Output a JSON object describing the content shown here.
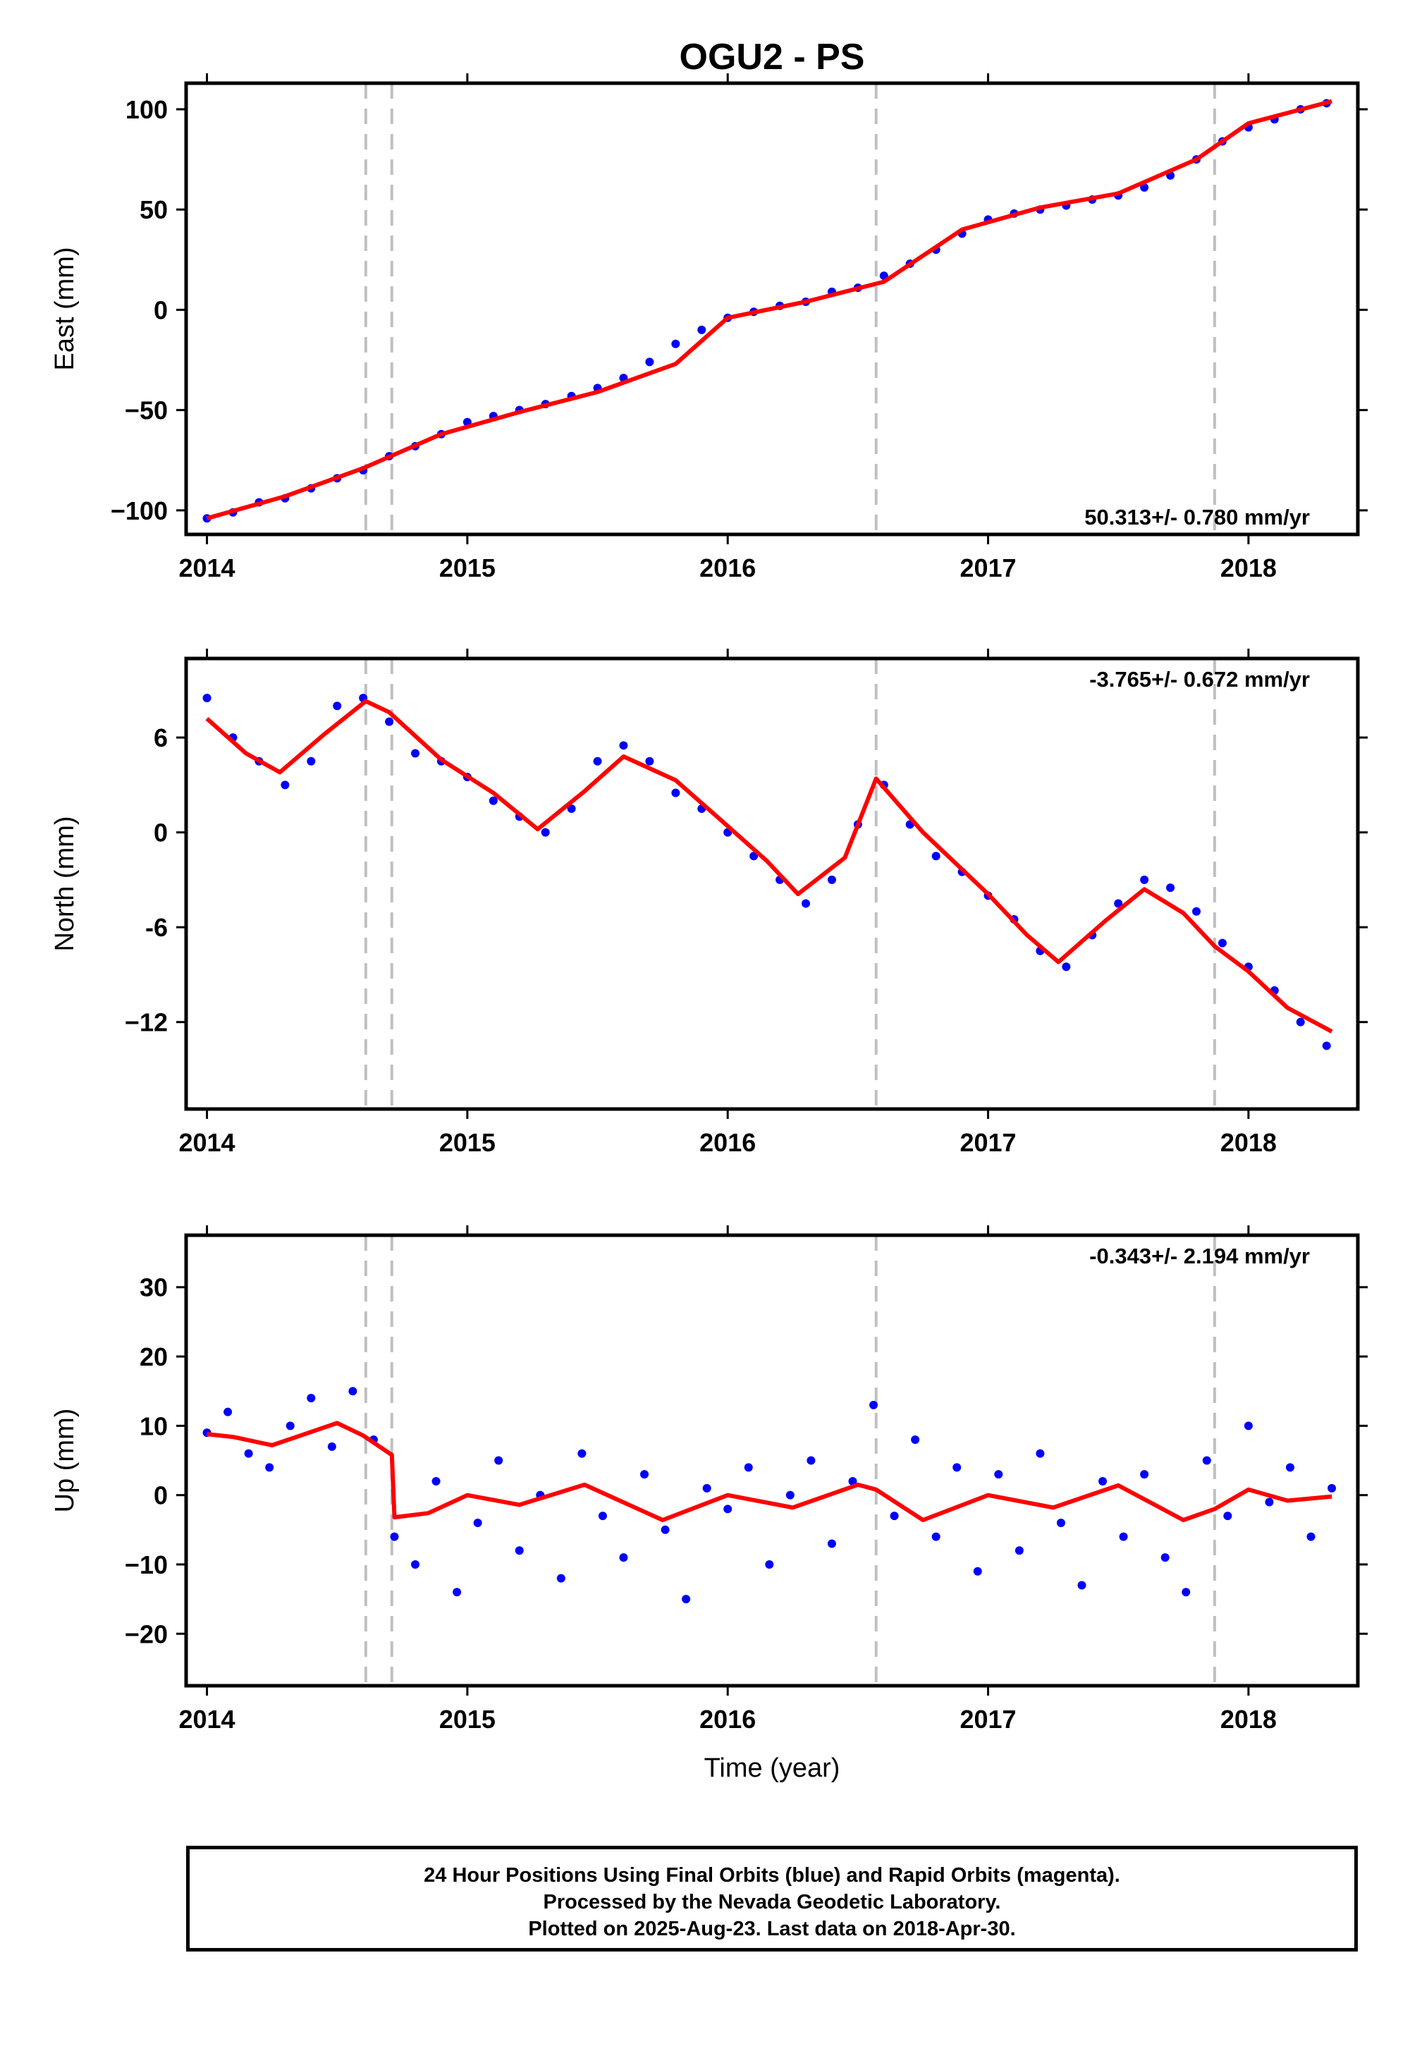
{
  "chart_data": {
    "type": "scatter",
    "title": "OGU2 - PS",
    "xlabel": "Time (year)",
    "xlim": [
      2013.92,
      2018.42
    ],
    "xticks": [
      "2014",
      "2015",
      "2016",
      "2017",
      "2018"
    ],
    "event_lines": [
      2014.61,
      2014.71,
      2016.57,
      2017.87
    ],
    "colors": {
      "points": "#0000ff",
      "fit": "#ff0000",
      "event_lines": "#c0c0c0",
      "frame": "#000000"
    },
    "panels": [
      {
        "ylabel": "East (mm)",
        "ylim": [
          -112,
          113
        ],
        "yticks": [
          "100",
          "50",
          "0",
          "−50",
          "−100"
        ],
        "ytick_values": [
          100,
          50,
          0,
          -50,
          -100
        ],
        "rate_label": "50.313+/- 0.780 mm/yr",
        "fit": {
          "x": [
            2014.0,
            2014.3,
            2014.6,
            2014.9,
            2015.2,
            2015.5,
            2015.8,
            2016.0,
            2016.3,
            2016.6,
            2016.9,
            2017.2,
            2017.5,
            2017.8,
            2018.0,
            2018.32
          ],
          "y": [
            -104,
            -93,
            -79,
            -62,
            -51,
            -41,
            -27,
            -4,
            4,
            14,
            40,
            51,
            58,
            75,
            93,
            104
          ]
        },
        "points": {
          "x": [
            2014.0,
            2014.1,
            2014.2,
            2014.3,
            2014.4,
            2014.5,
            2014.6,
            2014.7,
            2014.8,
            2014.9,
            2015.0,
            2015.1,
            2015.2,
            2015.3,
            2015.4,
            2015.5,
            2015.6,
            2015.7,
            2015.8,
            2015.9,
            2016.0,
            2016.1,
            2016.2,
            2016.3,
            2016.4,
            2016.5,
            2016.6,
            2016.7,
            2016.8,
            2016.9,
            2017.0,
            2017.1,
            2017.2,
            2017.3,
            2017.4,
            2017.5,
            2017.6,
            2017.7,
            2017.8,
            2017.9,
            2018.0,
            2018.1,
            2018.2,
            2018.3
          ],
          "y": [
            -104,
            -101,
            -96,
            -94,
            -89,
            -84,
            -80,
            -73,
            -68,
            -62,
            -56,
            -53,
            -50,
            -47,
            -43,
            -39,
            -34,
            -26,
            -17,
            -10,
            -4,
            -1,
            2,
            4,
            9,
            11,
            17,
            23,
            30,
            38,
            45,
            48,
            50,
            52,
            55,
            57,
            61,
            67,
            75,
            84,
            91,
            95,
            100,
            103
          ]
        }
      },
      {
        "ylabel": "North (mm)",
        "ylim": [
          -17.5,
          11
        ],
        "yticks": [
          "6",
          "0",
          "-6",
          "−12"
        ],
        "ytick_values": [
          6,
          0,
          -6,
          -12
        ],
        "rate_label": "-3.765+/- 0.672 mm/yr",
        "fit": {
          "x": [
            2014.0,
            2014.15,
            2014.28,
            2014.45,
            2014.61,
            2014.7,
            2014.9,
            2015.1,
            2015.27,
            2015.45,
            2015.6,
            2015.8,
            2016.0,
            2016.15,
            2016.27,
            2016.45,
            2016.57,
            2016.75,
            2017.0,
            2017.15,
            2017.27,
            2017.45,
            2017.6,
            2017.75,
            2017.87,
            2018.0,
            2018.15,
            2018.32
          ],
          "y": [
            7.2,
            5.0,
            3.8,
            6.2,
            8.3,
            7.6,
            4.6,
            2.5,
            0.2,
            2.6,
            4.8,
            3.3,
            0.4,
            -1.8,
            -3.9,
            -1.6,
            3.4,
            0.0,
            -3.9,
            -6.5,
            -8.2,
            -5.6,
            -3.6,
            -5.1,
            -7.2,
            -8.8,
            -11.1,
            -12.6
          ]
        },
        "points": {
          "x": [
            2014.0,
            2014.1,
            2014.2,
            2014.3,
            2014.4,
            2014.5,
            2014.6,
            2014.7,
            2014.8,
            2014.9,
            2015.0,
            2015.1,
            2015.2,
            2015.3,
            2015.4,
            2015.5,
            2015.6,
            2015.7,
            2015.8,
            2015.9,
            2016.0,
            2016.1,
            2016.2,
            2016.3,
            2016.4,
            2016.5,
            2016.6,
            2016.7,
            2016.8,
            2016.9,
            2017.0,
            2017.1,
            2017.2,
            2017.3,
            2017.4,
            2017.5,
            2017.6,
            2017.7,
            2017.8,
            2017.9,
            2018.0,
            2018.1,
            2018.2,
            2018.3
          ],
          "y": [
            8.5,
            6.0,
            4.5,
            3.0,
            4.5,
            8.0,
            8.5,
            7.0,
            5.0,
            4.5,
            3.5,
            2.0,
            1.0,
            0.0,
            1.5,
            4.5,
            5.5,
            4.5,
            2.5,
            1.5,
            0.0,
            -1.5,
            -3.0,
            -4.5,
            -3.0,
            0.5,
            3.0,
            0.5,
            -1.5,
            -2.5,
            -4.0,
            -5.5,
            -7.5,
            -8.5,
            -6.5,
            -4.5,
            -3.0,
            -3.5,
            -5.0,
            -7.0,
            -8.5,
            -10.0,
            -12.0,
            -13.5
          ]
        }
      },
      {
        "ylabel": "Up (mm)",
        "ylim": [
          -27.5,
          37.5
        ],
        "yticks": [
          "30",
          "20",
          "10",
          "0",
          "−10",
          "−20"
        ],
        "ytick_values": [
          30,
          20,
          10,
          0,
          -10,
          -20
        ],
        "rate_label": "-0.343+/- 2.194 mm/yr",
        "fit": {
          "x": [
            2014.0,
            2014.1,
            2014.25,
            2014.5,
            2014.6,
            2014.71,
            2014.72,
            2014.85,
            2015.0,
            2015.2,
            2015.45,
            2015.75,
            2016.0,
            2016.25,
            2016.5,
            2016.57,
            2016.75,
            2017.0,
            2017.25,
            2017.5,
            2017.75,
            2017.87,
            2018.0,
            2018.15,
            2018.32
          ],
          "y": [
            8.8,
            8.4,
            7.2,
            10.4,
            8.6,
            5.8,
            -3.2,
            -2.6,
            0.0,
            -1.4,
            1.5,
            -3.6,
            0.0,
            -1.8,
            1.5,
            0.8,
            -3.6,
            0.0,
            -1.8,
            1.4,
            -3.6,
            -2.0,
            0.8,
            -0.8,
            -0.2
          ]
        },
        "points": {
          "x": [
            2014.0,
            2014.08,
            2014.16,
            2014.24,
            2014.32,
            2014.4,
            2014.48,
            2014.56,
            2014.64,
            2014.72,
            2014.8,
            2014.88,
            2014.96,
            2015.04,
            2015.12,
            2015.2,
            2015.28,
            2015.36,
            2015.44,
            2015.52,
            2015.6,
            2015.68,
            2015.76,
            2015.84,
            2015.92,
            2016.0,
            2016.08,
            2016.16,
            2016.24,
            2016.32,
            2016.4,
            2016.48,
            2016.56,
            2016.64,
            2016.72,
            2016.8,
            2016.88,
            2016.96,
            2017.04,
            2017.12,
            2017.2,
            2017.28,
            2017.36,
            2017.44,
            2017.52,
            2017.6,
            2017.68,
            2017.76,
            2017.84,
            2017.92,
            2018.0,
            2018.08,
            2018.16,
            2018.24,
            2018.32
          ],
          "y": [
            9,
            12,
            6,
            4,
            10,
            14,
            7,
            15,
            8,
            -6,
            -10,
            2,
            -14,
            -4,
            5,
            -8,
            0,
            -12,
            6,
            -3,
            -9,
            3,
            -5,
            -15,
            1,
            -2,
            4,
            -10,
            0,
            5,
            -7,
            2,
            13,
            -3,
            8,
            -6,
            4,
            -11,
            3,
            -8,
            6,
            -4,
            -13,
            2,
            -6,
            3,
            -9,
            -14,
            5,
            -3,
            10,
            -1,
            4,
            -6,
            1
          ]
        }
      }
    ]
  },
  "caption": {
    "line1": "24 Hour Positions Using Final Orbits (blue) and Rapid Orbits (magenta).",
    "line2": "Processed by the Nevada Geodetic Laboratory.",
    "line3": "Plotted on 2025-Aug-23. Last data on 2018-Apr-30."
  }
}
